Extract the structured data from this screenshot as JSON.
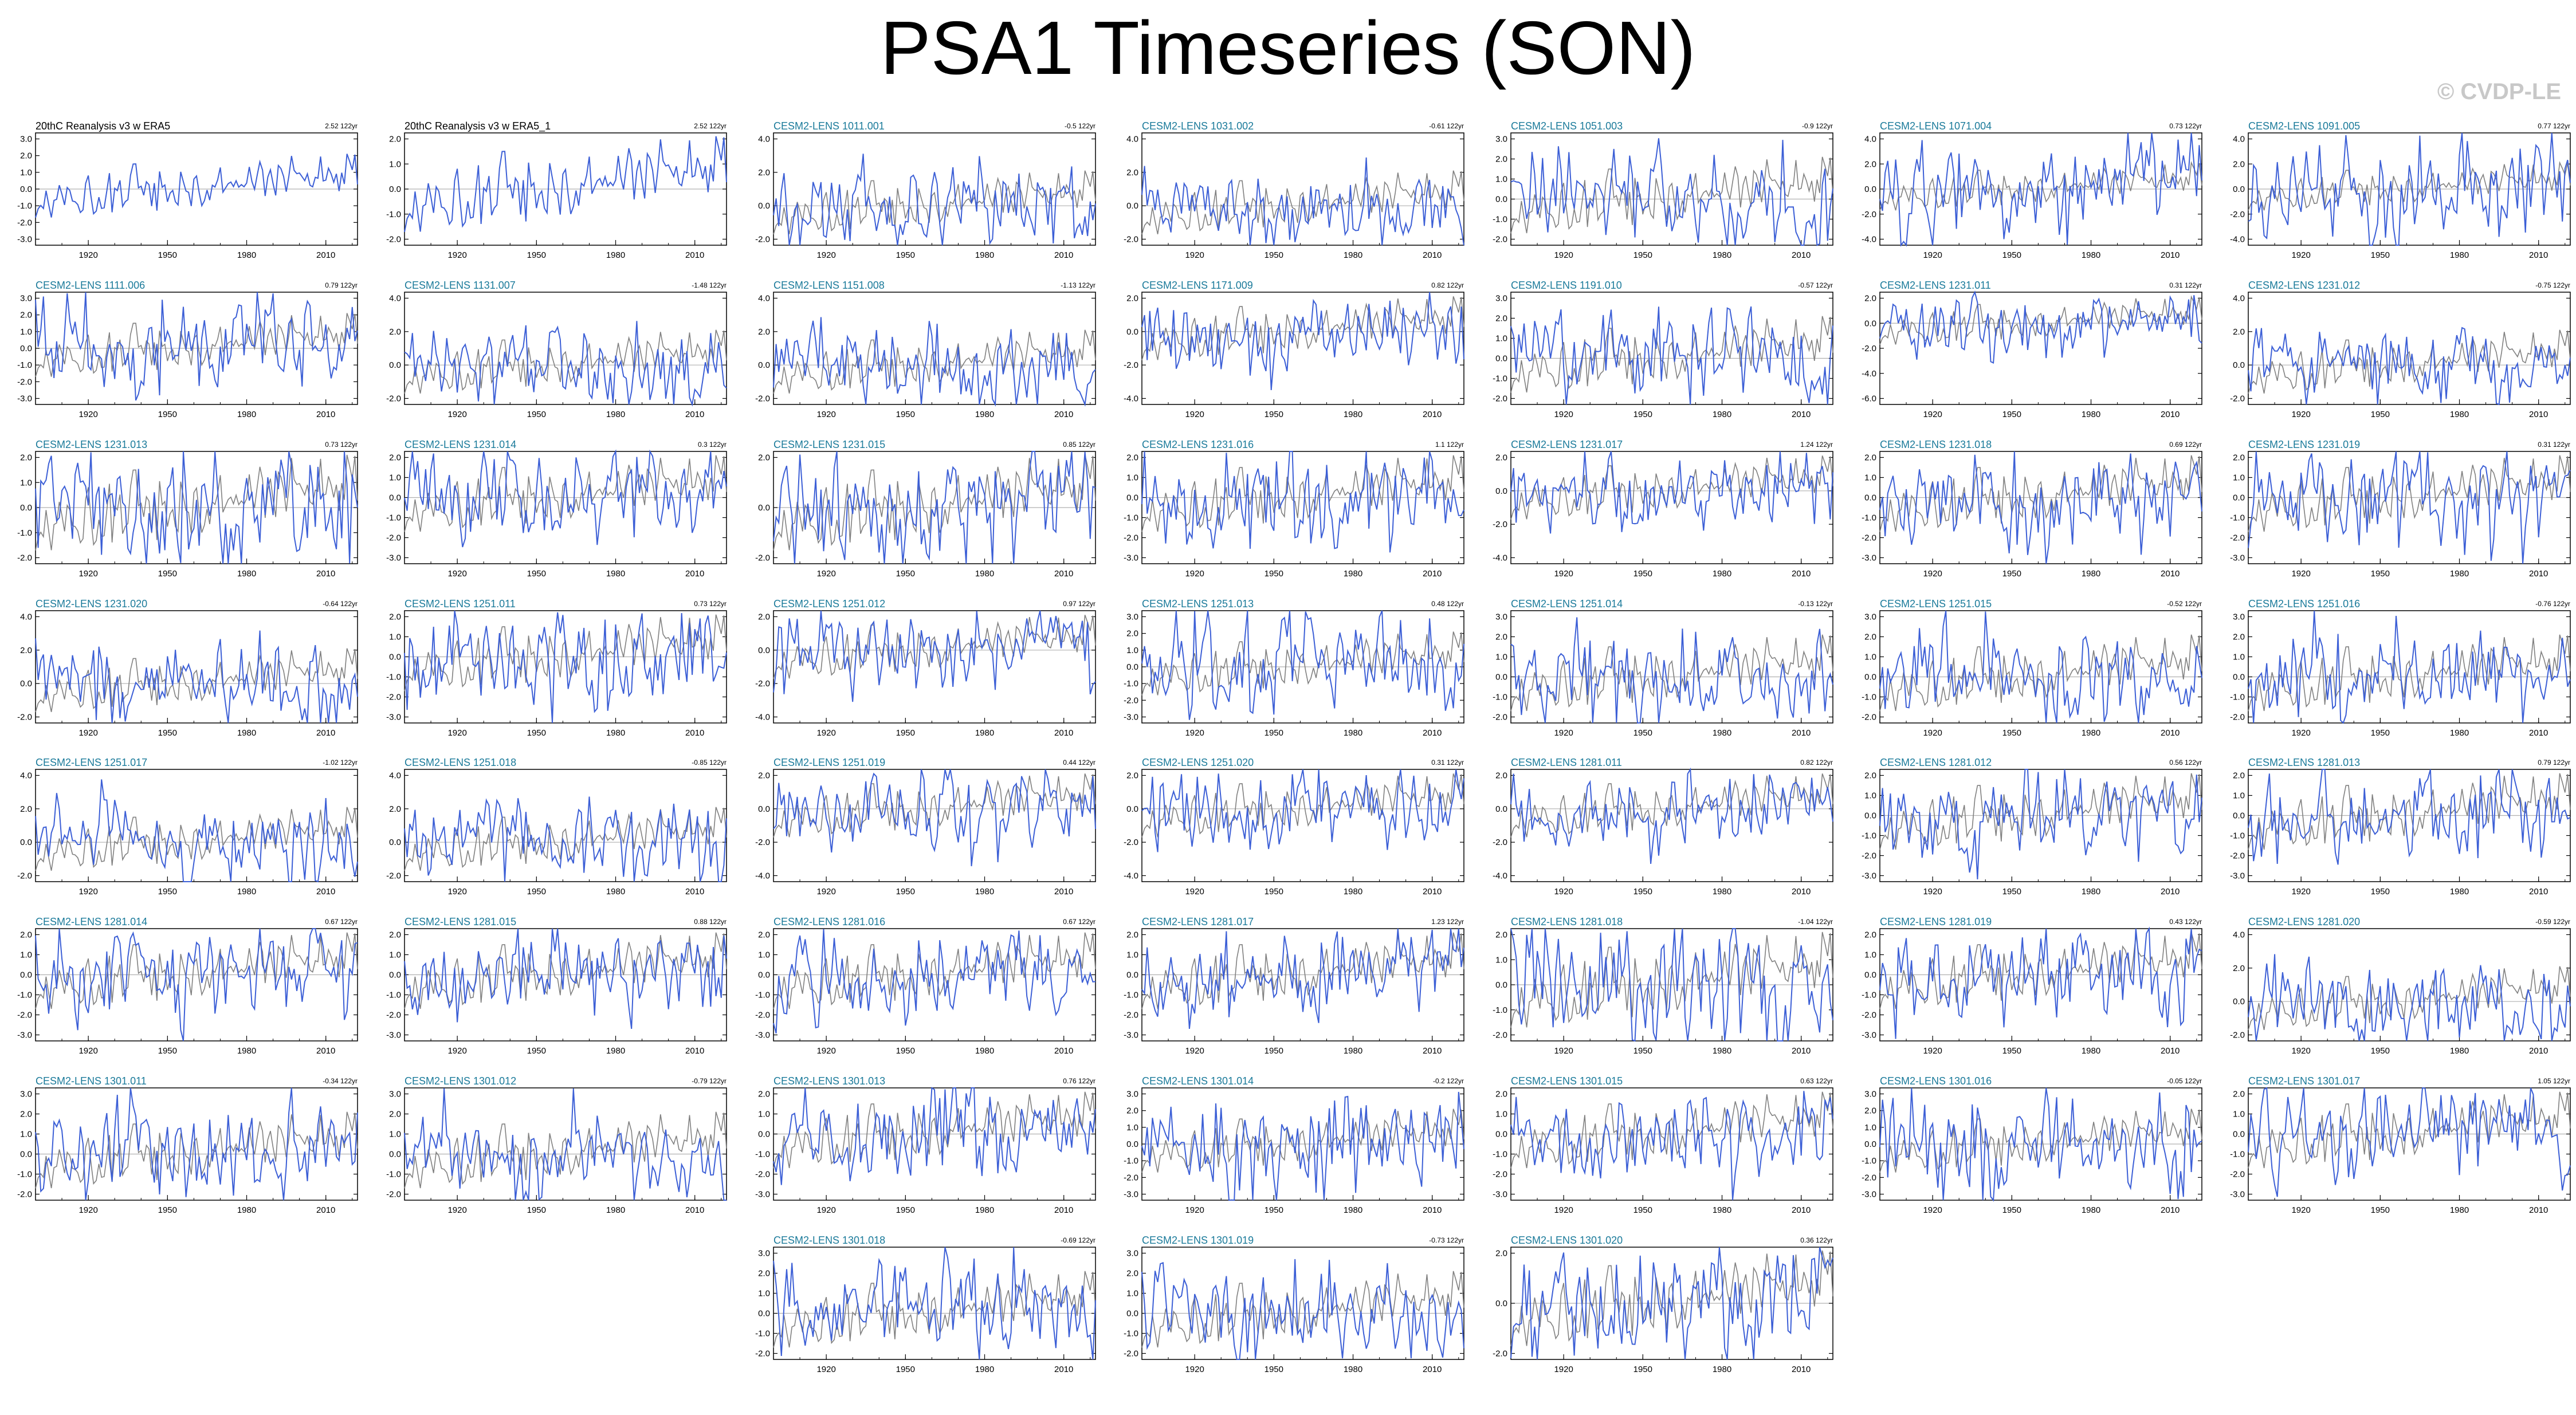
{
  "page": {
    "title": "PSA1 Timeseries (SON)",
    "watermark": "© CVDP-LE"
  },
  "chart_data": {
    "type": "line",
    "x_range": [
      1900,
      2022
    ],
    "x_ticks": [
      1920,
      1950,
      1980,
      2010
    ],
    "colors": {
      "observation_title": "#000000",
      "member_title": "#1a7a9a",
      "member_series": "#3c5fd6",
      "observation_overlay": "#808080",
      "zero_line": "#b0b0b0"
    },
    "panels": [
      {
        "title": "20thC Reanalysis v3 w ERA5",
        "trend": "2.52 122yr",
        "is_obs": true,
        "y_ticks": [
          "3.0",
          "2.0",
          "1.0",
          "0.0",
          "-1.0",
          "-2.0",
          "-3.0"
        ],
        "y_values": [
          3,
          2,
          1,
          0,
          -1,
          -2,
          -3
        ]
      },
      {
        "title": "20thC Reanalysis v3 w ERA5_1",
        "trend": "2.52 122yr",
        "is_obs": true,
        "y_ticks": [
          "2.0",
          "1.0",
          "0.0",
          "-1.0",
          "-2.0"
        ],
        "y_values": [
          2,
          1,
          0,
          -1,
          -2
        ]
      },
      {
        "title": "CESM2-LENS 1011.001",
        "trend": "-0.5 122yr",
        "is_obs": false,
        "y_ticks": [
          "4.0",
          "2.0",
          "0.0",
          "-2.0"
        ],
        "y_values": [
          4,
          2,
          0,
          -2
        ]
      },
      {
        "title": "CESM2-LENS 1031.002",
        "trend": "-0.61 122yr",
        "is_obs": false,
        "y_ticks": [
          "4.0",
          "2.0",
          "0.0",
          "-2.0"
        ],
        "y_values": [
          4,
          2,
          0,
          -2
        ]
      },
      {
        "title": "CESM2-LENS 1051.003",
        "trend": "-0.9 122yr",
        "is_obs": false,
        "y_ticks": [
          "3.0",
          "2.0",
          "1.0",
          "0.0",
          "-1.0",
          "-2.0"
        ],
        "y_values": [
          3,
          2,
          1,
          0,
          -1,
          -2
        ]
      },
      {
        "title": "CESM2-LENS 1071.004",
        "trend": "0.73 122yr",
        "is_obs": false,
        "y_ticks": [
          "4.0",
          "2.0",
          "0.0",
          "-2.0",
          "-4.0"
        ],
        "y_values": [
          4,
          2,
          0,
          -2,
          -4
        ]
      },
      {
        "title": "CESM2-LENS 1091.005",
        "trend": "0.77 122yr",
        "is_obs": false,
        "y_ticks": [
          "4.0",
          "2.0",
          "0.0",
          "-2.0",
          "-4.0"
        ],
        "y_values": [
          4,
          2,
          0,
          -2,
          -4
        ]
      },
      {
        "title": "CESM2-LENS 1111.006",
        "trend": "0.79 122yr",
        "is_obs": false,
        "y_ticks": [
          "3.0",
          "2.0",
          "1.0",
          "0.0",
          "-1.0",
          "-2.0",
          "-3.0"
        ],
        "y_values": [
          3,
          2,
          1,
          0,
          -1,
          -2,
          -3
        ]
      },
      {
        "title": "CESM2-LENS 1131.007",
        "trend": "-1.48 122yr",
        "is_obs": false,
        "y_ticks": [
          "4.0",
          "2.0",
          "0.0",
          "-2.0"
        ],
        "y_values": [
          4,
          2,
          0,
          -2
        ]
      },
      {
        "title": "CESM2-LENS 1151.008",
        "trend": "-1.13 122yr",
        "is_obs": false,
        "y_ticks": [
          "4.0",
          "2.0",
          "0.0",
          "-2.0"
        ],
        "y_values": [
          4,
          2,
          0,
          -2
        ]
      },
      {
        "title": "CESM2-LENS 1171.009",
        "trend": "0.82 122yr",
        "is_obs": false,
        "y_ticks": [
          "2.0",
          "0.0",
          "-2.0",
          "-4.0"
        ],
        "y_values": [
          2,
          0,
          -2,
          -4
        ]
      },
      {
        "title": "CESM2-LENS 1191.010",
        "trend": "-0.57 122yr",
        "is_obs": false,
        "y_ticks": [
          "3.0",
          "2.0",
          "1.0",
          "0.0",
          "-1.0",
          "-2.0"
        ],
        "y_values": [
          3,
          2,
          1,
          0,
          -1,
          -2
        ]
      },
      {
        "title": "CESM2-LENS 1231.011",
        "trend": "0.31 122yr",
        "is_obs": false,
        "y_ticks": [
          "2.0",
          "0.0",
          "-2.0",
          "-4.0",
          "-6.0"
        ],
        "y_values": [
          2,
          0,
          -2,
          -4,
          -6
        ]
      },
      {
        "title": "CESM2-LENS 1231.012",
        "trend": "-0.75 122yr",
        "is_obs": false,
        "y_ticks": [
          "4.0",
          "2.0",
          "0.0",
          "-2.0"
        ],
        "y_values": [
          4,
          2,
          0,
          -2
        ]
      },
      {
        "title": "CESM2-LENS 1231.013",
        "trend": "0.73 122yr",
        "is_obs": false,
        "y_ticks": [
          "2.0",
          "1.0",
          "0.0",
          "-1.0",
          "-2.0"
        ],
        "y_values": [
          2,
          1,
          0,
          -1,
          -2
        ]
      },
      {
        "title": "CESM2-LENS 1231.014",
        "trend": "0.3 122yr",
        "is_obs": false,
        "y_ticks": [
          "2.0",
          "1.0",
          "0.0",
          "-1.0",
          "-2.0",
          "-3.0"
        ],
        "y_values": [
          2,
          1,
          0,
          -1,
          -2,
          -3
        ]
      },
      {
        "title": "CESM2-LENS 1231.015",
        "trend": "0.85 122yr",
        "is_obs": false,
        "y_ticks": [
          "2.0",
          "0.0",
          "-2.0"
        ],
        "y_values": [
          2,
          0,
          -2
        ]
      },
      {
        "title": "CESM2-LENS 1231.016",
        "trend": "1.1 122yr",
        "is_obs": false,
        "y_ticks": [
          "2.0",
          "1.0",
          "0.0",
          "-1.0",
          "-2.0",
          "-3.0"
        ],
        "y_values": [
          2,
          1,
          0,
          -1,
          -2,
          -3
        ]
      },
      {
        "title": "CESM2-LENS 1231.017",
        "trend": "1.24 122yr",
        "is_obs": false,
        "y_ticks": [
          "2.0",
          "0.0",
          "-2.0",
          "-4.0"
        ],
        "y_values": [
          2,
          0,
          -2,
          -4
        ]
      },
      {
        "title": "CESM2-LENS 1231.018",
        "trend": "0.69 122yr",
        "is_obs": false,
        "y_ticks": [
          "2.0",
          "1.0",
          "0.0",
          "-1.0",
          "-2.0",
          "-3.0"
        ],
        "y_values": [
          2,
          1,
          0,
          -1,
          -2,
          -3
        ]
      },
      {
        "title": "CESM2-LENS 1231.019",
        "trend": "0.31 122yr",
        "is_obs": false,
        "y_ticks": [
          "2.0",
          "1.0",
          "0.0",
          "-1.0",
          "-2.0",
          "-3.0"
        ],
        "y_values": [
          2,
          1,
          0,
          -1,
          -2,
          -3
        ]
      },
      {
        "title": "CESM2-LENS 1231.020",
        "trend": "-0.64 122yr",
        "is_obs": false,
        "y_ticks": [
          "4.0",
          "2.0",
          "0.0",
          "-2.0"
        ],
        "y_values": [
          4,
          2,
          0,
          -2
        ]
      },
      {
        "title": "CESM2-LENS 1251.011",
        "trend": "0.73 122yr",
        "is_obs": false,
        "y_ticks": [
          "2.0",
          "1.0",
          "0.0",
          "-1.0",
          "-2.0",
          "-3.0"
        ],
        "y_values": [
          2,
          1,
          0,
          -1,
          -2,
          -3
        ]
      },
      {
        "title": "CESM2-LENS 1251.012",
        "trend": "0.97 122yr",
        "is_obs": false,
        "y_ticks": [
          "2.0",
          "0.0",
          "-2.0",
          "-4.0"
        ],
        "y_values": [
          2,
          0,
          -2,
          -4
        ]
      },
      {
        "title": "CESM2-LENS 1251.013",
        "trend": "0.48 122yr",
        "is_obs": false,
        "y_ticks": [
          "3.0",
          "2.0",
          "1.0",
          "0.0",
          "-1.0",
          "-2.0",
          "-3.0"
        ],
        "y_values": [
          3,
          2,
          1,
          0,
          -1,
          -2,
          -3
        ]
      },
      {
        "title": "CESM2-LENS 1251.014",
        "trend": "-0.13 122yr",
        "is_obs": false,
        "y_ticks": [
          "3.0",
          "2.0",
          "1.0",
          "0.0",
          "-1.0",
          "-2.0"
        ],
        "y_values": [
          3,
          2,
          1,
          0,
          -1,
          -2
        ]
      },
      {
        "title": "CESM2-LENS 1251.015",
        "trend": "-0.52 122yr",
        "is_obs": false,
        "y_ticks": [
          "3.0",
          "2.0",
          "1.0",
          "0.0",
          "-1.0",
          "-2.0"
        ],
        "y_values": [
          3,
          2,
          1,
          0,
          -1,
          -2
        ]
      },
      {
        "title": "CESM2-LENS 1251.016",
        "trend": "-0.76 122yr",
        "is_obs": false,
        "y_ticks": [
          "3.0",
          "2.0",
          "1.0",
          "0.0",
          "-1.0",
          "-2.0"
        ],
        "y_values": [
          3,
          2,
          1,
          0,
          -1,
          -2
        ]
      },
      {
        "title": "CESM2-LENS 1251.017",
        "trend": "-1.02 122yr",
        "is_obs": false,
        "y_ticks": [
          "4.0",
          "2.0",
          "0.0",
          "-2.0"
        ],
        "y_values": [
          4,
          2,
          0,
          -2
        ]
      },
      {
        "title": "CESM2-LENS 1251.018",
        "trend": "-0.85 122yr",
        "is_obs": false,
        "y_ticks": [
          "4.0",
          "2.0",
          "0.0",
          "-2.0"
        ],
        "y_values": [
          4,
          2,
          0,
          -2
        ]
      },
      {
        "title": "CESM2-LENS 1251.019",
        "trend": "0.44 122yr",
        "is_obs": false,
        "y_ticks": [
          "2.0",
          "0.0",
          "-2.0",
          "-4.0"
        ],
        "y_values": [
          2,
          0,
          -2,
          -4
        ]
      },
      {
        "title": "CESM2-LENS 1251.020",
        "trend": "0.31 122yr",
        "is_obs": false,
        "y_ticks": [
          "2.0",
          "0.0",
          "-2.0",
          "-4.0"
        ],
        "y_values": [
          2,
          0,
          -2,
          -4
        ]
      },
      {
        "title": "CESM2-LENS 1281.011",
        "trend": "0.82 122yr",
        "is_obs": false,
        "y_ticks": [
          "2.0",
          "0.0",
          "-2.0",
          "-4.0"
        ],
        "y_values": [
          2,
          0,
          -2,
          -4
        ]
      },
      {
        "title": "CESM2-LENS 1281.012",
        "trend": "0.56 122yr",
        "is_obs": false,
        "y_ticks": [
          "2.0",
          "1.0",
          "0.0",
          "-1.0",
          "-2.0",
          "-3.0"
        ],
        "y_values": [
          2,
          1,
          0,
          -1,
          -2,
          -3
        ]
      },
      {
        "title": "CESM2-LENS 1281.013",
        "trend": "0.79 122yr",
        "is_obs": false,
        "y_ticks": [
          "2.0",
          "1.0",
          "0.0",
          "-1.0",
          "-2.0",
          "-3.0"
        ],
        "y_values": [
          2,
          1,
          0,
          -1,
          -2,
          -3
        ]
      },
      {
        "title": "CESM2-LENS 1281.014",
        "trend": "0.67 122yr",
        "is_obs": false,
        "y_ticks": [
          "2.0",
          "1.0",
          "0.0",
          "-1.0",
          "-2.0",
          "-3.0"
        ],
        "y_values": [
          2,
          1,
          0,
          -1,
          -2,
          -3
        ]
      },
      {
        "title": "CESM2-LENS 1281.015",
        "trend": "0.88 122yr",
        "is_obs": false,
        "y_ticks": [
          "2.0",
          "1.0",
          "0.0",
          "-1.0",
          "-2.0",
          "-3.0"
        ],
        "y_values": [
          2,
          1,
          0,
          -1,
          -2,
          -3
        ]
      },
      {
        "title": "CESM2-LENS 1281.016",
        "trend": "0.67 122yr",
        "is_obs": false,
        "y_ticks": [
          "2.0",
          "1.0",
          "0.0",
          "-1.0",
          "-2.0",
          "-3.0"
        ],
        "y_values": [
          2,
          1,
          0,
          -1,
          -2,
          -3
        ]
      },
      {
        "title": "CESM2-LENS 1281.017",
        "trend": "1.23 122yr",
        "is_obs": false,
        "y_ticks": [
          "2.0",
          "1.0",
          "0.0",
          "-1.0",
          "-2.0",
          "-3.0"
        ],
        "y_values": [
          2,
          1,
          0,
          -1,
          -2,
          -3
        ]
      },
      {
        "title": "CESM2-LENS 1281.018",
        "trend": "-1.04 122yr",
        "is_obs": false,
        "y_ticks": [
          "2.0",
          "1.0",
          "0.0",
          "-1.0",
          "-2.0"
        ],
        "y_values": [
          2,
          1,
          0,
          -1,
          -2
        ]
      },
      {
        "title": "CESM2-LENS 1281.019",
        "trend": "0.43 122yr",
        "is_obs": false,
        "y_ticks": [
          "2.0",
          "1.0",
          "0.0",
          "-1.0",
          "-2.0",
          "-3.0"
        ],
        "y_values": [
          2,
          1,
          0,
          -1,
          -2,
          -3
        ]
      },
      {
        "title": "CESM2-LENS 1281.020",
        "trend": "-0.59 122yr",
        "is_obs": false,
        "y_ticks": [
          "4.0",
          "2.0",
          "0.0",
          "-2.0"
        ],
        "y_values": [
          4,
          2,
          0,
          -2
        ]
      },
      {
        "title": "CESM2-LENS 1301.011",
        "trend": "-0.34 122yr",
        "is_obs": false,
        "y_ticks": [
          "3.0",
          "2.0",
          "1.0",
          "0.0",
          "-1.0",
          "-2.0"
        ],
        "y_values": [
          3,
          2,
          1,
          0,
          -1,
          -2
        ]
      },
      {
        "title": "CESM2-LENS 1301.012",
        "trend": "-0.79 122yr",
        "is_obs": false,
        "y_ticks": [
          "3.0",
          "2.0",
          "1.0",
          "0.0",
          "-1.0",
          "-2.0"
        ],
        "y_values": [
          3,
          2,
          1,
          0,
          -1,
          -2
        ]
      },
      {
        "title": "CESM2-LENS 1301.013",
        "trend": "0.76 122yr",
        "is_obs": false,
        "y_ticks": [
          "2.0",
          "1.0",
          "0.0",
          "-1.0",
          "-2.0",
          "-3.0"
        ],
        "y_values": [
          2,
          1,
          0,
          -1,
          -2,
          -3
        ]
      },
      {
        "title": "CESM2-LENS 1301.014",
        "trend": "-0.2 122yr",
        "is_obs": false,
        "y_ticks": [
          "3.0",
          "2.0",
          "1.0",
          "0.0",
          "-1.0",
          "-2.0",
          "-3.0"
        ],
        "y_values": [
          3,
          2,
          1,
          0,
          -1,
          -2,
          -3
        ]
      },
      {
        "title": "CESM2-LENS 1301.015",
        "trend": "0.63 122yr",
        "is_obs": false,
        "y_ticks": [
          "2.0",
          "1.0",
          "0.0",
          "-1.0",
          "-2.0",
          "-3.0"
        ],
        "y_values": [
          2,
          1,
          0,
          -1,
          -2,
          -3
        ]
      },
      {
        "title": "CESM2-LENS 1301.016",
        "trend": "-0.05 122yr",
        "is_obs": false,
        "y_ticks": [
          "3.0",
          "2.0",
          "1.0",
          "0.0",
          "-1.0",
          "-2.0",
          "-3.0"
        ],
        "y_values": [
          3,
          2,
          1,
          0,
          -1,
          -2,
          -3
        ]
      },
      {
        "title": "CESM2-LENS 1301.017",
        "trend": "1.05 122yr",
        "is_obs": false,
        "y_ticks": [
          "2.0",
          "1.0",
          "0.0",
          "-1.0",
          "-2.0",
          "-3.0"
        ],
        "y_values": [
          2,
          1,
          0,
          -1,
          -2,
          -3
        ]
      },
      {
        "title": "CESM2-LENS 1301.018",
        "trend": "-0.69 122yr",
        "is_obs": false,
        "y_ticks": [
          "3.0",
          "2.0",
          "1.0",
          "0.0",
          "-1.0",
          "-2.0"
        ],
        "y_values": [
          3,
          2,
          1,
          0,
          -1,
          -2
        ]
      },
      {
        "title": "CESM2-LENS 1301.019",
        "trend": "-0.73 122yr",
        "is_obs": false,
        "y_ticks": [
          "3.0",
          "2.0",
          "1.0",
          "0.0",
          "-1.0",
          "-2.0"
        ],
        "y_values": [
          3,
          2,
          1,
          0,
          -1,
          -2
        ]
      },
      {
        "title": "CESM2-LENS 1301.020",
        "trend": "0.36 122yr",
        "is_obs": false,
        "y_ticks": [
          "2.0",
          "0.0",
          "-2.0"
        ],
        "y_values": [
          2,
          0,
          -2
        ]
      }
    ]
  }
}
